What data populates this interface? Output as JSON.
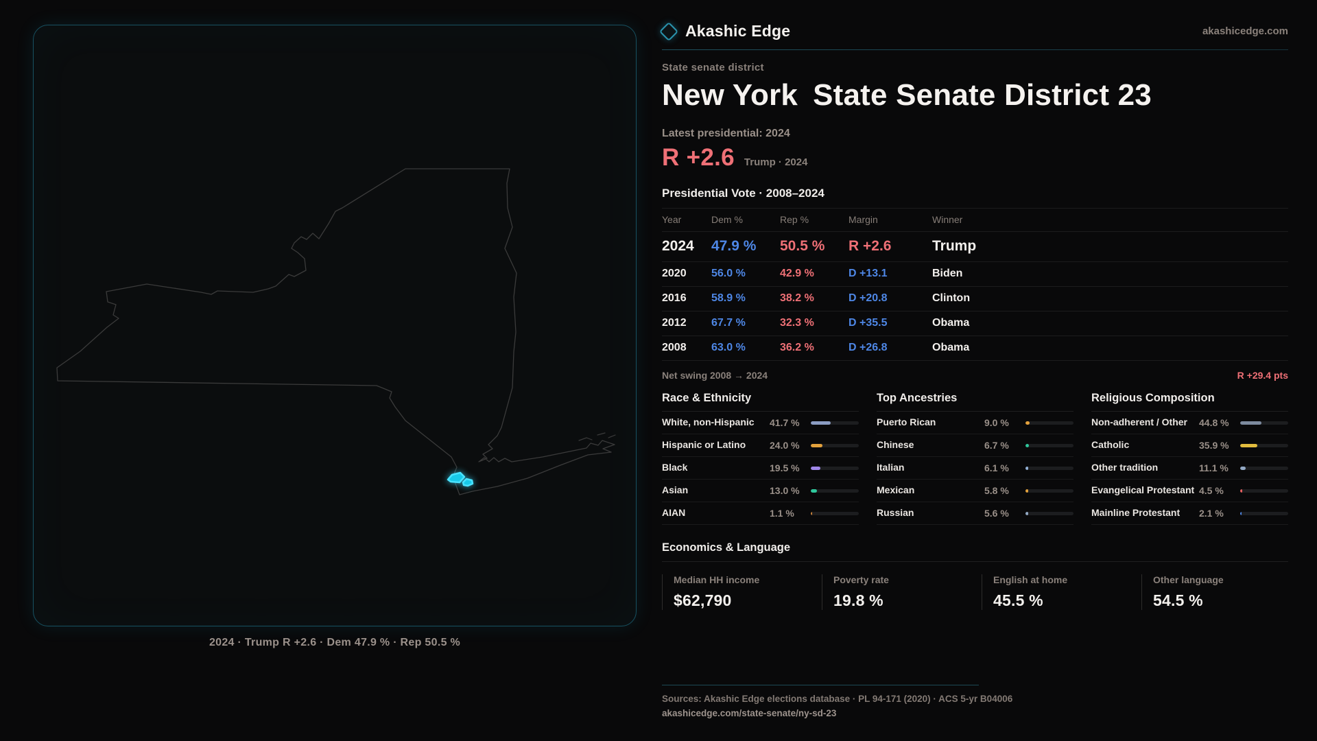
{
  "brand": {
    "name": "Akashic Edge",
    "domain": "akashicedge.com"
  },
  "page": {
    "kicker": "State senate district",
    "title_primary": "New York",
    "title_secondary": "State Senate District 23",
    "latest_label": "Latest presidential: 2024",
    "margin_value": "R +2.6",
    "margin_context": "Trump · 2024"
  },
  "map": {
    "caption": "2024 · Trump R +2.6 · Dem 47.9 % · Rep 50.5 %",
    "outline_color": "#3b3b3b",
    "district_fill": "#18c9e9",
    "district_stroke": "#49e2ff"
  },
  "vote_table": {
    "title": "Presidential Vote · 2008–2024",
    "columns": {
      "year": "Year",
      "dem": "Dem %",
      "rep": "Rep %",
      "margin": "Margin",
      "winner": "Winner"
    },
    "rows": [
      {
        "year": "2024",
        "dem": "47.9 %",
        "rep": "50.5 %",
        "margin": "R +2.6",
        "winner": "Trump"
      },
      {
        "year": "2020",
        "dem": "56.0 %",
        "rep": "42.9 %",
        "margin": "D +13.1",
        "winner": "Biden"
      },
      {
        "year": "2016",
        "dem": "58.9 %",
        "rep": "38.2 %",
        "margin": "D +20.8",
        "winner": "Clinton"
      },
      {
        "year": "2012",
        "dem": "67.7 %",
        "rep": "32.3 %",
        "margin": "D +35.5",
        "winner": "Obama"
      },
      {
        "year": "2008",
        "dem": "63.0 %",
        "rep": "36.2 %",
        "margin": "D +26.8",
        "winner": "Obama"
      }
    ],
    "net_swing_label": "Net swing 2008 → 2024",
    "net_swing_value": "R +29.4 pts"
  },
  "demographics": {
    "race": {
      "title": "Race & Ethnicity",
      "rows": [
        {
          "label": "White, non-Hispanic",
          "value": "41.7 %",
          "pct": 41.7,
          "color": "#8b9cc2"
        },
        {
          "label": "Hispanic or Latino",
          "value": "24.0 %",
          "pct": 24.0,
          "color": "#e3a13c"
        },
        {
          "label": "Black",
          "value": "19.5 %",
          "pct": 19.5,
          "color": "#9f87e8"
        },
        {
          "label": "Asian",
          "value": "13.0 %",
          "pct": 13.0,
          "color": "#2fc79c"
        },
        {
          "label": "AIAN",
          "value": "1.1 %",
          "pct": 1.1,
          "color": "#c8823a"
        }
      ]
    },
    "ancestries": {
      "title": "Top Ancestries",
      "rows": [
        {
          "label": "Puerto Rican",
          "value": "9.0 %",
          "pct": 9.0,
          "color": "#e3a13c"
        },
        {
          "label": "Chinese",
          "value": "6.7 %",
          "pct": 6.7,
          "color": "#2fc79c"
        },
        {
          "label": "Italian",
          "value": "6.1 %",
          "pct": 6.1,
          "color": "#93b2d8"
        },
        {
          "label": "Mexican",
          "value": "5.8 %",
          "pct": 5.8,
          "color": "#e3a13c"
        },
        {
          "label": "Russian",
          "value": "5.6 %",
          "pct": 5.6,
          "color": "#93a9c4"
        }
      ]
    },
    "religion": {
      "title": "Religious Composition",
      "rows": [
        {
          "label": "Non-adherent / Other",
          "value": "44.8 %",
          "pct": 44.8,
          "color": "#7d8a9e"
        },
        {
          "label": "Catholic",
          "value": "35.9 %",
          "pct": 35.9,
          "color": "#e2bc3e"
        },
        {
          "label": "Other tradition",
          "value": "11.1 %",
          "pct": 11.1,
          "color": "#93a9c4"
        },
        {
          "label": "Evangelical Protestant",
          "value": "4.5 %",
          "pct": 4.5,
          "color": "#e86060"
        },
        {
          "label": "Mainline Protestant",
          "value": "2.1 %",
          "pct": 2.1,
          "color": "#4e87e6"
        }
      ]
    }
  },
  "economics": {
    "title": "Economics & Language",
    "stats": [
      {
        "label": "Median HH income",
        "value": "$62,790"
      },
      {
        "label": "Poverty rate",
        "value": "19.8 %"
      },
      {
        "label": "English at home",
        "value": "45.5 %"
      },
      {
        "label": "Other language",
        "value": "54.5 %"
      }
    ]
  },
  "footer": {
    "sources": "Sources: Akashic Edge elections database · PL 94-171 (2020) · ACS 5-yr B04006",
    "permalink": "akashicedge.com/state-senate/ny-sd-23"
  }
}
